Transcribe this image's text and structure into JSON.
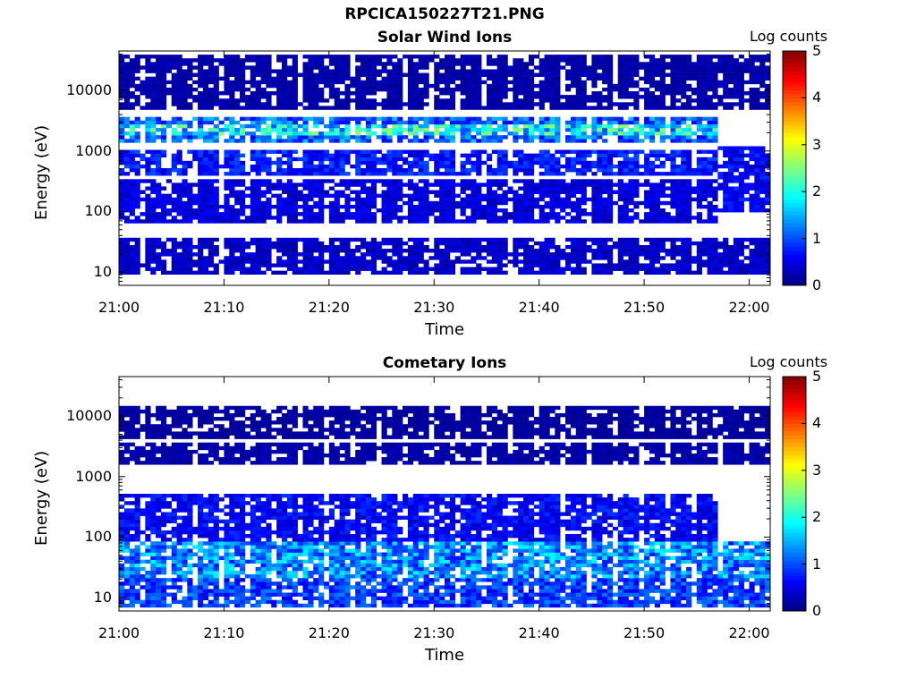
{
  "page_title": "RPCICA150227T21.PNG",
  "chart_data": [
    {
      "type": "heatmap",
      "title": "Solar Wind Ions",
      "xlabel": "Time",
      "ylabel": "Energy (eV)",
      "x_ticks": [
        "21:00",
        "21:10",
        "21:20",
        "21:30",
        "21:40",
        "21:50",
        "22:00"
      ],
      "x_range_minutes": [
        0,
        62
      ],
      "y_scale": "log",
      "y_range": [
        6,
        45000
      ],
      "y_ticks": [
        {
          "value": 10,
          "label": "10"
        },
        {
          "value": 100,
          "label": "100"
        },
        {
          "value": 1000,
          "label": "1000"
        },
        {
          "value": 10000,
          "label": "10000"
        }
      ],
      "colorbar": {
        "title": "Log counts",
        "range": [
          0,
          5
        ],
        "ticks": [
          "0",
          "1",
          "2",
          "3",
          "4",
          "5"
        ],
        "colormap": "jet"
      },
      "note_values": "approximate log-count levels per time/energy band",
      "blocks": [
        {
          "t": [
            0,
            62
          ],
          "e": [
            9,
            38
          ],
          "v": 0.35
        },
        {
          "t": [
            0,
            57
          ],
          "e": [
            380,
            1000
          ],
          "v": 0.7
        },
        {
          "t": [
            0,
            57
          ],
          "e": [
            1300,
            3800
          ],
          "v": 1.1
        },
        {
          "t": [
            0,
            57
          ],
          "e": [
            60,
            330
          ],
          "v": 0.45
        },
        {
          "t": [
            0,
            57
          ],
          "e": [
            1700,
            2900
          ],
          "v": 1.8
        },
        {
          "t": [
            57,
            62
          ],
          "e": [
            100,
            1200
          ],
          "v": 0.6
        },
        {
          "t": [
            0,
            62
          ],
          "e": [
            5000,
            40000
          ],
          "v": 0.2
        }
      ]
    },
    {
      "type": "heatmap",
      "title": "Cometary Ions",
      "xlabel": "Time",
      "ylabel": "Energy (eV)",
      "x_ticks": [
        "21:00",
        "21:10",
        "21:20",
        "21:30",
        "21:40",
        "21:50",
        "22:00"
      ],
      "x_range_minutes": [
        0,
        62
      ],
      "y_scale": "log",
      "y_range": [
        6,
        45000
      ],
      "y_ticks": [
        {
          "value": 10,
          "label": "10"
        },
        {
          "value": 100,
          "label": "100"
        },
        {
          "value": 1000,
          "label": "1000"
        },
        {
          "value": 10000,
          "label": "10000"
        }
      ],
      "colorbar": {
        "title": "Log counts",
        "range": [
          0,
          5
        ],
        "ticks": [
          "0",
          "1",
          "2",
          "3",
          "4",
          "5"
        ],
        "colormap": "jet"
      },
      "note_values": "approximate log-count levels per time/energy band",
      "blocks": [
        {
          "t": [
            0,
            62
          ],
          "e": [
            7,
            20
          ],
          "v": 0.9
        },
        {
          "t": [
            0,
            62
          ],
          "e": [
            20,
            90
          ],
          "v": 1.3
        },
        {
          "t": [
            0,
            57
          ],
          "e": [
            90,
            550
          ],
          "v": 0.6
        },
        {
          "t": [
            0,
            62
          ],
          "e": [
            1600,
            3500
          ],
          "v": 0.2
        },
        {
          "t": [
            0,
            62
          ],
          "e": [
            4500,
            14000
          ],
          "v": 0.15
        }
      ]
    }
  ]
}
